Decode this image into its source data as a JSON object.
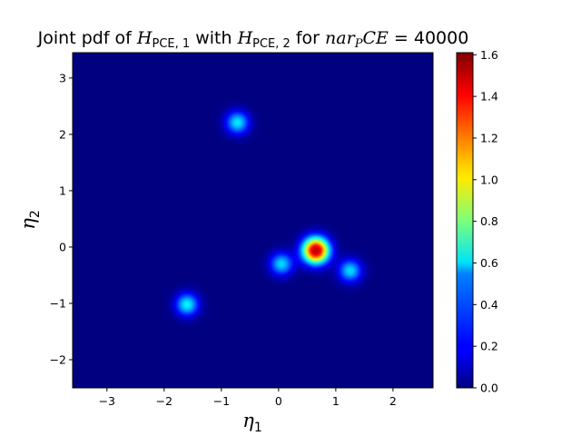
{
  "chart_data": {
    "type": "heatmap",
    "title": {
      "prefix": "Joint pdf of ",
      "h1_base": "H",
      "h1_sub": "PCE, 1",
      "mid": " with ",
      "h2_base": "H",
      "h2_sub": "PCE, 2",
      "for_text": " for ",
      "var_text": "nar",
      "var_sub": "P",
      "var_rest": "CE",
      "equals": " = 40000"
    },
    "xlabel": {
      "base": "η",
      "sub": "1"
    },
    "ylabel": {
      "base": "η",
      "sub": "2"
    },
    "xlim": [
      -3.6,
      2.7
    ],
    "ylim": [
      -2.5,
      3.45
    ],
    "xticks": [
      -3,
      -2,
      -1,
      0,
      1,
      2
    ],
    "yticks": [
      -2,
      -1,
      0,
      1,
      2,
      3
    ],
    "colormap": "jet",
    "colorbar": {
      "min": 0.0,
      "max": 1.61,
      "ticks": [
        "0.0",
        "0.2",
        "0.4",
        "0.6",
        "0.8",
        "1.0",
        "1.2",
        "1.4",
        "1.6"
      ]
    },
    "peaks": [
      {
        "x": 0.65,
        "y": -0.06,
        "density": 1.61,
        "sigma": 0.16
      },
      {
        "x": 0.05,
        "y": -0.3,
        "density": 0.55,
        "sigma": 0.14
      },
      {
        "x": 1.25,
        "y": -0.42,
        "density": 0.55,
        "sigma": 0.14
      },
      {
        "x": -0.72,
        "y": 2.21,
        "density": 0.58,
        "sigma": 0.14
      },
      {
        "x": -1.6,
        "y": -1.02,
        "density": 0.6,
        "sigma": 0.14
      }
    ],
    "grid": false
  }
}
